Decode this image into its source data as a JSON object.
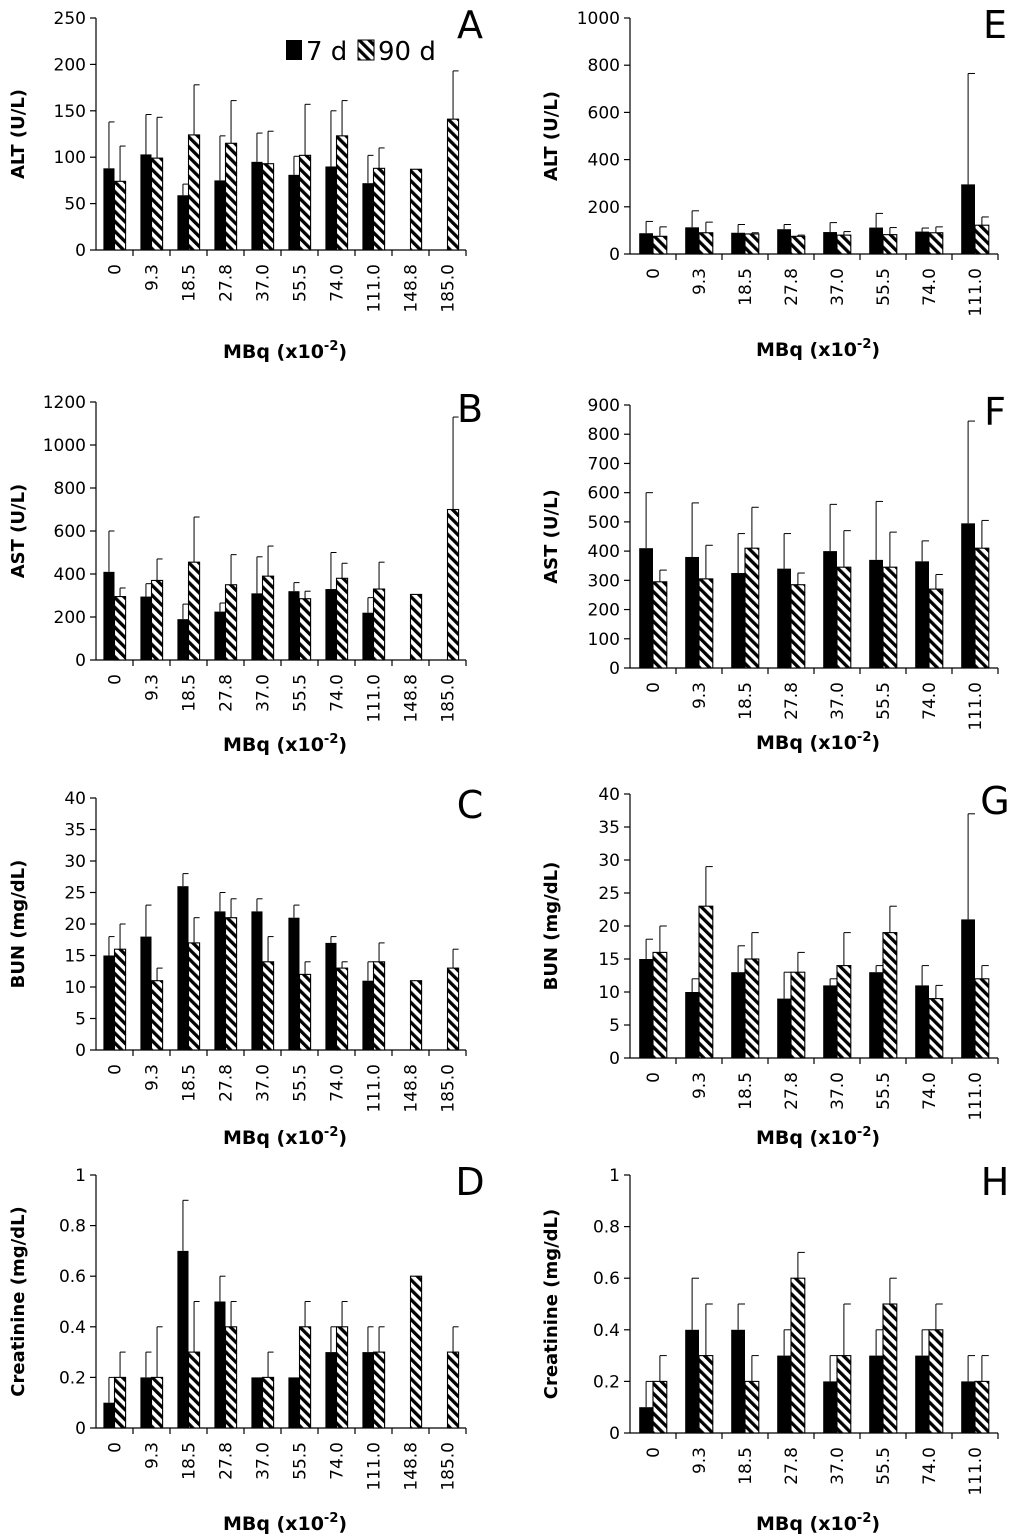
{
  "legend": {
    "series": [
      "7 d",
      "90 d"
    ]
  },
  "chart_data": [
    {
      "panel": "A",
      "type": "bar",
      "ylabel": "ALT (U/L)",
      "xlabel": "MBq (x10",
      "xlabel_sup": "-2",
      "xlabel_end": ")",
      "ylim": [
        0,
        250
      ],
      "yticks": [
        0,
        50,
        100,
        150,
        200,
        250
      ],
      "categories": [
        "0",
        "9.3",
        "18.5",
        "27.8",
        "37.0",
        "55.5",
        "74.0",
        "111.0",
        "148.8",
        "185.0"
      ],
      "series": [
        {
          "name": "7 d",
          "values": [
            88,
            103,
            59,
            75,
            95,
            81,
            90,
            72,
            null,
            null
          ],
          "errors": [
            50,
            43,
            12,
            48,
            31,
            20,
            60,
            30,
            null,
            null
          ]
        },
        {
          "name": "90 d",
          "values": [
            74,
            99,
            124,
            115,
            93,
            102,
            123,
            88,
            87,
            141
          ],
          "errors": [
            38,
            44,
            54,
            46,
            35,
            55,
            38,
            22,
            0,
            52
          ]
        }
      ]
    },
    {
      "panel": "B",
      "type": "bar",
      "ylabel": "AST (U/L)",
      "xlabel": "MBq (x10",
      "xlabel_sup": "-2",
      "xlabel_end": ")",
      "ylim": [
        0,
        1200
      ],
      "yticks": [
        0,
        200,
        400,
        600,
        800,
        1000,
        1200
      ],
      "categories": [
        "0",
        "9.3",
        "18.5",
        "27.8",
        "37.0",
        "55.5",
        "74.0",
        "111.0",
        "148.8",
        "185.0"
      ],
      "series": [
        {
          "name": "7 d",
          "values": [
            410,
            295,
            190,
            225,
            310,
            320,
            330,
            220,
            null,
            null
          ],
          "errors": [
            190,
            60,
            70,
            40,
            170,
            40,
            170,
            70,
            null,
            null
          ]
        },
        {
          "name": "90 d",
          "values": [
            295,
            370,
            455,
            350,
            390,
            285,
            380,
            330,
            305,
            700
          ],
          "errors": [
            40,
            100,
            210,
            140,
            140,
            35,
            70,
            125,
            0,
            430
          ]
        }
      ]
    },
    {
      "panel": "C",
      "type": "bar",
      "ylabel": "BUN (mg/dL)",
      "xlabel": "MBq (x10",
      "xlabel_sup": "-2",
      "xlabel_end": ")",
      "ylim": [
        0,
        40
      ],
      "yticks": [
        0,
        5,
        10,
        15,
        20,
        25,
        30,
        35,
        40
      ],
      "categories": [
        "0",
        "9.3",
        "18.5",
        "27.8",
        "37.0",
        "55.5",
        "74.0",
        "111.0",
        "148.8",
        "185.0"
      ],
      "series": [
        {
          "name": "7 d",
          "values": [
            15,
            18,
            26,
            22,
            22,
            21,
            17,
            11,
            null,
            null
          ],
          "errors": [
            3,
            5,
            2,
            3,
            2,
            2,
            1,
            3,
            null,
            null
          ]
        },
        {
          "name": "90 d",
          "values": [
            16,
            11,
            17,
            21,
            14,
            12,
            13,
            14,
            11,
            13
          ],
          "errors": [
            4,
            2,
            4,
            3,
            4,
            2,
            1,
            3,
            0,
            3
          ]
        }
      ]
    },
    {
      "panel": "D",
      "type": "bar",
      "ylabel": "Creatinine (mg/dL)",
      "xlabel": "MBq (x10",
      "xlabel_sup": "-2",
      "xlabel_end": ")",
      "ylim": [
        0,
        1
      ],
      "yticks": [
        0,
        0.2,
        0.4,
        0.6,
        0.8,
        1
      ],
      "categories": [
        "0",
        "9.3",
        "18.5",
        "27.8",
        "37.0",
        "55.5",
        "74.0",
        "111.0",
        "148.8",
        "185.0"
      ],
      "series": [
        {
          "name": "7 d",
          "values": [
            0.1,
            0.2,
            0.7,
            0.5,
            0.2,
            0.2,
            0.3,
            0.3,
            null,
            null
          ],
          "errors": [
            0.1,
            0.1,
            0.2,
            0.1,
            0,
            0,
            0.1,
            0.1,
            null,
            null
          ]
        },
        {
          "name": "90 d",
          "values": [
            0.2,
            0.2,
            0.3,
            0.4,
            0.2,
            0.4,
            0.4,
            0.3,
            0.6,
            0.3
          ],
          "errors": [
            0.1,
            0.2,
            0.2,
            0.1,
            0.1,
            0.1,
            0.1,
            0.1,
            0,
            0.1
          ]
        }
      ]
    },
    {
      "panel": "E",
      "type": "bar",
      "ylabel": "ALT (U/L)",
      "xlabel": "MBq (x10",
      "xlabel_sup": "-2",
      "xlabel_end": ")",
      "ylim": [
        0,
        1000
      ],
      "yticks": [
        0,
        200,
        400,
        600,
        800,
        1000
      ],
      "categories": [
        "0",
        "9.3",
        "18.5",
        "27.8",
        "37.0",
        "55.5",
        "74.0",
        "111.0"
      ],
      "series": [
        {
          "name": "7 d",
          "values": [
            88,
            113,
            90,
            105,
            93,
            112,
            95,
            295
          ],
          "errors": [
            50,
            70,
            35,
            20,
            40,
            60,
            15,
            470
          ]
        },
        {
          "name": "90 d",
          "values": [
            75,
            90,
            85,
            75,
            80,
            82,
            90,
            122
          ],
          "errors": [
            40,
            45,
            5,
            5,
            15,
            30,
            25,
            35
          ]
        }
      ]
    },
    {
      "panel": "F",
      "type": "bar",
      "ylabel": "AST (U/L)",
      "xlabel": "MBq (x10",
      "xlabel_sup": "-2",
      "xlabel_end": ")",
      "ylim": [
        0,
        900
      ],
      "yticks": [
        0,
        100,
        200,
        300,
        400,
        500,
        600,
        700,
        800,
        900
      ],
      "categories": [
        "0",
        "9.3",
        "18.5",
        "27.8",
        "37.0",
        "55.5",
        "74.0",
        "111.0"
      ],
      "series": [
        {
          "name": "7 d",
          "values": [
            410,
            380,
            325,
            340,
            400,
            370,
            365,
            495
          ],
          "errors": [
            190,
            185,
            135,
            120,
            160,
            200,
            70,
            350
          ]
        },
        {
          "name": "90 d",
          "values": [
            295,
            305,
            410,
            285,
            345,
            345,
            270,
            410
          ],
          "errors": [
            40,
            115,
            140,
            40,
            125,
            120,
            50,
            95
          ]
        }
      ]
    },
    {
      "panel": "G",
      "type": "bar",
      "ylabel": "BUN (mg/dL)",
      "xlabel": "MBq (x10",
      "xlabel_sup": "-2",
      "xlabel_end": ")",
      "ylim": [
        0,
        40
      ],
      "yticks": [
        0,
        5,
        10,
        15,
        20,
        25,
        30,
        35,
        40
      ],
      "categories": [
        "0",
        "9.3",
        "18.5",
        "27.8",
        "37.0",
        "55.5",
        "74.0",
        "111.0"
      ],
      "series": [
        {
          "name": "7 d",
          "values": [
            15,
            10,
            13,
            9,
            11,
            13,
            11,
            21
          ],
          "errors": [
            3,
            2,
            4,
            4,
            1,
            1,
            3,
            16
          ]
        },
        {
          "name": "90 d",
          "values": [
            16,
            23,
            15,
            13,
            14,
            19,
            9,
            12
          ],
          "errors": [
            4,
            6,
            4,
            3,
            5,
            4,
            2,
            2
          ]
        }
      ]
    },
    {
      "panel": "H",
      "type": "bar",
      "ylabel": "Creatinine (mg/dL)",
      "xlabel": "MBq (x10",
      "xlabel_sup": "-2",
      "xlabel_end": ")",
      "ylim": [
        0,
        1
      ],
      "yticks": [
        0,
        0.2,
        0.4,
        0.6,
        0.8,
        1
      ],
      "categories": [
        "0",
        "9.3",
        "18.5",
        "27.8",
        "37.0",
        "55.5",
        "74.0",
        "111.0"
      ],
      "series": [
        {
          "name": "7 d",
          "values": [
            0.1,
            0.4,
            0.4,
            0.3,
            0.2,
            0.3,
            0.3,
            0.2
          ],
          "errors": [
            0.1,
            0.2,
            0.1,
            0.1,
            0.1,
            0.1,
            0.1,
            0.1
          ]
        },
        {
          "name": "90 d",
          "values": [
            0.2,
            0.3,
            0.2,
            0.6,
            0.3,
            0.5,
            0.4,
            0.2
          ],
          "errors": [
            0.1,
            0.2,
            0.1,
            0.1,
            0.2,
            0.1,
            0.1,
            0.1
          ]
        }
      ]
    }
  ]
}
